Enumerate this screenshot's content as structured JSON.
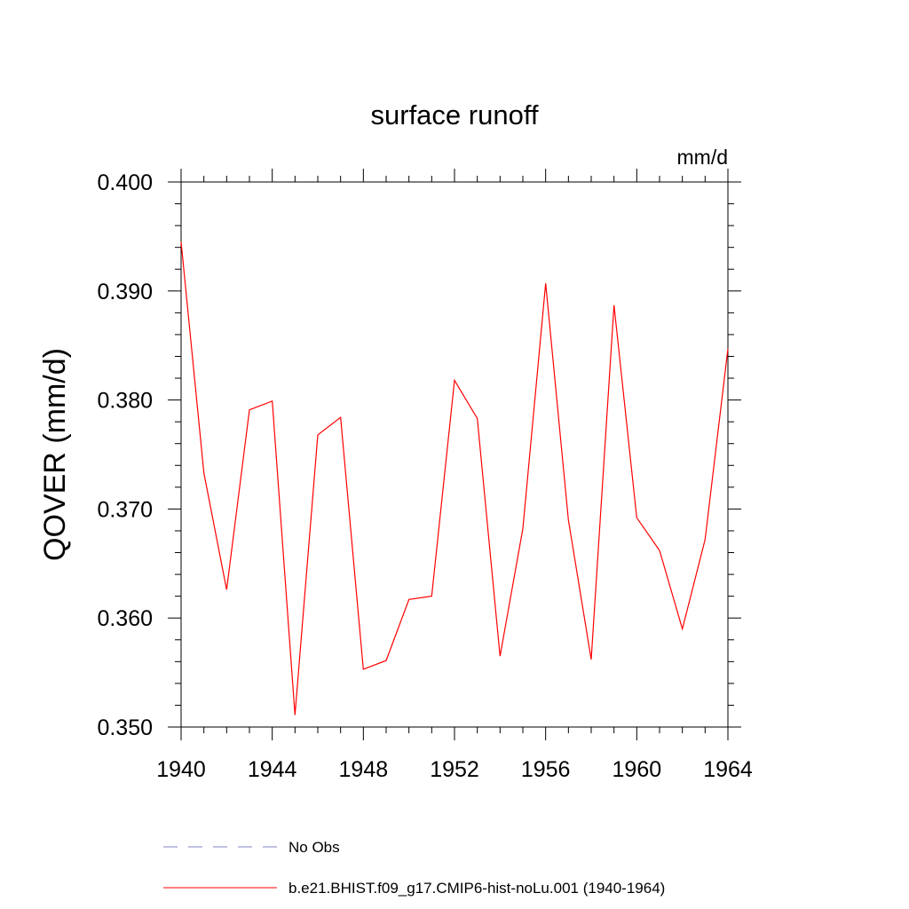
{
  "chart_data": {
    "type": "line",
    "title": "surface runoff",
    "units_label": "mm/d",
    "ylabel": "QOVER  (mm/d)",
    "xlabel": "",
    "xlim": [
      1940,
      1964
    ],
    "ylim": [
      0.35,
      0.4
    ],
    "x_ticks": [
      1940,
      1944,
      1948,
      1952,
      1956,
      1960,
      1964
    ],
    "x_tick_labels": [
      "1940",
      "1944",
      "1948",
      "1952",
      "1956",
      "1960",
      "1964"
    ],
    "y_ticks": [
      0.35,
      0.36,
      0.37,
      0.38,
      0.39,
      0.4
    ],
    "y_tick_labels": [
      "0.350",
      "0.360",
      "0.370",
      "0.380",
      "0.390",
      "0.400"
    ],
    "grid": false,
    "legend_position": "bottom",
    "series": [
      {
        "name": "b.e21.BHIST.f09_g17.CMIP6-hist-noLu.001 (1940-1964)",
        "color": "#ff0000",
        "dash": "solid",
        "x": [
          1940,
          1941,
          1942,
          1943,
          1944,
          1945,
          1946,
          1947,
          1948,
          1949,
          1950,
          1951,
          1952,
          1953,
          1954,
          1955,
          1956,
          1957,
          1958,
          1959,
          1960,
          1961,
          1962,
          1963,
          1964
        ],
        "y": [
          0.3945,
          0.3733,
          0.3626,
          0.3791,
          0.3799,
          0.3511,
          0.3768,
          0.3784,
          0.3553,
          0.3561,
          0.3617,
          0.362,
          0.3818,
          0.3783,
          0.3565,
          0.3682,
          0.3907,
          0.369,
          0.3562,
          0.3887,
          0.3692,
          0.3662,
          0.359,
          0.3672,
          0.3847
        ]
      }
    ],
    "legend": [
      {
        "label": "No Obs",
        "color": "#8080c0",
        "dash": "dashed"
      },
      {
        "label": "b.e21.BHIST.f09_g17.CMIP6-hist-noLu.001 (1940-1964)",
        "color": "#ff0000",
        "dash": "solid"
      }
    ]
  }
}
